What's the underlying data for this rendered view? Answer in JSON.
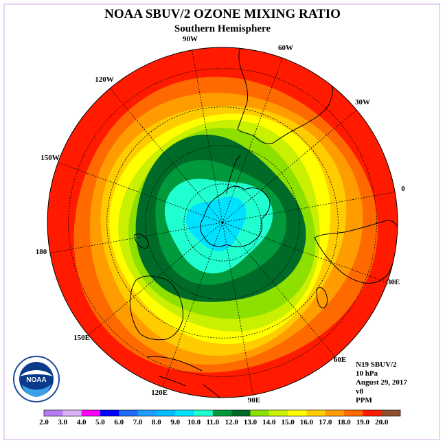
{
  "title": "NOAA SBUV/2 OZONE MIXING RATIO",
  "subtitle": "Southern Hemisphere",
  "longitude_labels": [
    "90W",
    "60W",
    "30W",
    "0",
    "30E",
    "60E",
    "90E",
    "120E",
    "150E",
    "180",
    "150W",
    "120W"
  ],
  "info": {
    "satellite": "N19 SBUV/2",
    "pressure": "10 hPa",
    "date": "August 29, 2017",
    "version": "v8",
    "units": "PPM"
  },
  "logo": {
    "text": "NOAA"
  },
  "colorbar": {
    "labels": [
      "2.0",
      "3.0",
      "4.0",
      "5.0",
      "6.0",
      "7.0",
      "8.0",
      "9.0",
      "10.0",
      "11.0",
      "12.0",
      "13.0",
      "14.0",
      "15.0",
      "16.0",
      "17.0",
      "18.0",
      "19.0",
      "20.0"
    ],
    "colors": [
      "#b57cf0",
      "#d8b0f4",
      "#ff00ff",
      "#0000ff",
      "#1e6cff",
      "#1e9cff",
      "#00bcff",
      "#00e0ff",
      "#20ffd0",
      "#009a3c",
      "#006a28",
      "#8ee000",
      "#c8f000",
      "#ffff00",
      "#ffcc00",
      "#ff9c00",
      "#ff6a00",
      "#ff1a00",
      "#8c5030"
    ]
  },
  "chart_data": {
    "type": "heatmap",
    "projection": "south-polar-stereographic",
    "variable": "ozone mixing ratio",
    "units": "PPM",
    "pressure_level": "10 hPa",
    "date": "August 29, 2017",
    "color_scale_min": 2.0,
    "color_scale_max": 20.0,
    "value_range_shown": [
      9.0,
      19.0
    ],
    "pattern": "minimum 9-10 PPM over Antarctica increasing outward to 18-19 PPM near the equatorward edge"
  }
}
